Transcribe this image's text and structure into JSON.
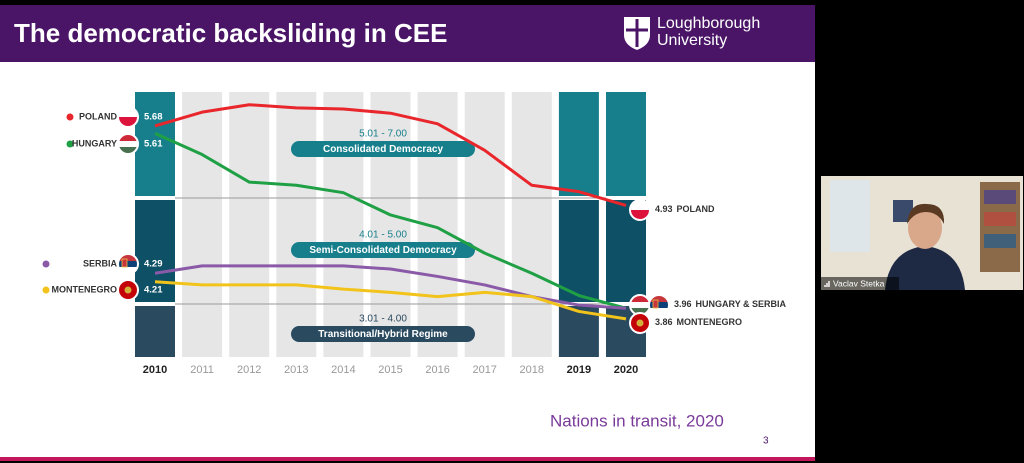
{
  "slide": {
    "title": "The democratic backsliding in CEE",
    "logo": [
      "Loughborough",
      "University"
    ],
    "caption": "Nations in transit, 2020",
    "page_number": "3"
  },
  "participant": {
    "name": "Vaclav Stetka"
  },
  "chart_data": {
    "type": "line",
    "categories": [
      "2010",
      "2011",
      "2012",
      "2013",
      "2014",
      "2015",
      "2016",
      "2017",
      "2018",
      "2019",
      "2020"
    ],
    "highlighted": [
      0,
      9,
      10
    ],
    "ylim": [
      3.5,
      6.0
    ],
    "band_edges": [
      4,
      5
    ],
    "bands": [
      {
        "range": "5.01 - 7.00",
        "name": "Consolidated Democracy"
      },
      {
        "range": "4.01 - 5.00",
        "name": "Semi-Consolidated Democracy"
      },
      {
        "range": "3.01 - 4.00",
        "name": "Transitional/Hybrid Regime"
      }
    ],
    "series": [
      {
        "name": "POLAND",
        "color": "#e8262b",
        "values": [
          5.68,
          5.81,
          5.88,
          5.85,
          5.84,
          5.8,
          5.7,
          5.45,
          5.12,
          5.06,
          4.93
        ],
        "end_label": "POLAND"
      },
      {
        "name": "HUNGARY",
        "color": "#1fa045",
        "values": [
          5.61,
          5.41,
          5.15,
          5.12,
          5.05,
          4.84,
          4.72,
          4.48,
          4.29,
          4.08,
          3.96
        ],
        "end_label": "HUNGARY & SERBIA"
      },
      {
        "name": "SERBIA",
        "color": "#8a5aa8",
        "values": [
          4.29,
          4.36,
          4.36,
          4.36,
          4.36,
          4.33,
          4.26,
          4.18,
          4.07,
          3.99,
          3.96
        ]
      },
      {
        "name": "MONTENEGRO",
        "color": "#f2c31a",
        "values": [
          4.21,
          4.18,
          4.18,
          4.18,
          4.14,
          4.11,
          4.07,
          4.11,
          4.07,
          3.93,
          3.86
        ],
        "end_label": "MONTENEGRO"
      }
    ]
  }
}
